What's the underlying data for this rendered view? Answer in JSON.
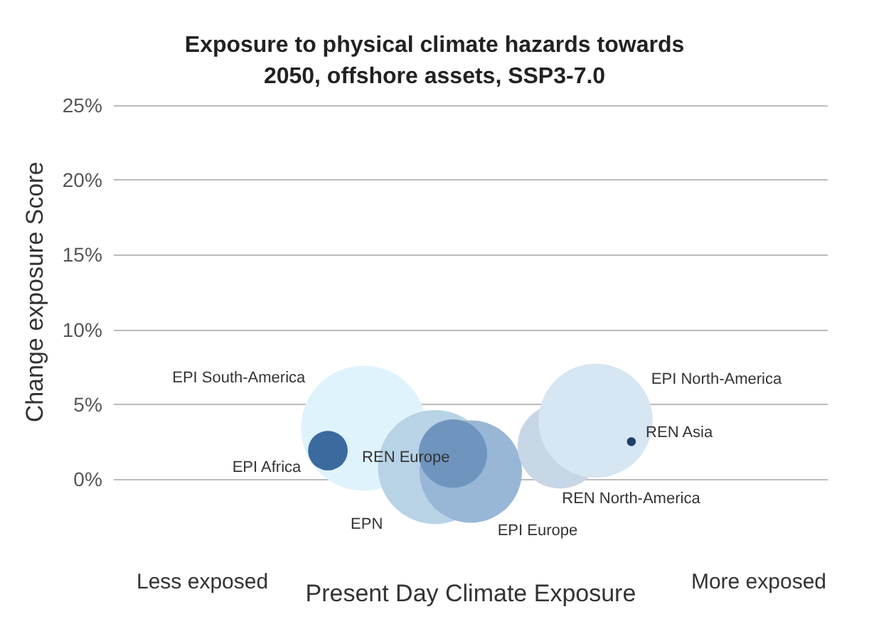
{
  "chart_data": {
    "type": "bubble",
    "title": "Exposure to physical climate hazards towards\n2050, offshore assets, SSP3-7.0",
    "xlabel": "Present Day Climate Exposure",
    "ylabel": "Change exposure Score",
    "annotations": [
      "Less exposed",
      "More exposed"
    ],
    "categories": [
      null,
      null,
      null,
      null,
      null,
      null,
      null,
      null,
      null,
      null,
      null,
      null,
      null,
      null,
      null,
      null,
      null,
      null,
      null,
      null,
      null,
      null,
      null,
      null,
      null,
      null,
      null,
      null,
      null,
      null,
      null,
      null,
      null,
      null,
      null,
      null,
      null,
      null,
      null,
      null,
      null
    ],
    "ylim": [
      0,
      25
    ],
    "yticks": [
      {
        "value": 0,
        "label": "0%"
      },
      {
        "value": 5,
        "label": "5%"
      },
      {
        "value": 10,
        "label": "10%"
      },
      {
        "value": 15,
        "label": "15%"
      },
      {
        "value": 20,
        "label": "20%"
      },
      {
        "value": 25,
        "label": "25%"
      }
    ],
    "tick_labels": "y",
    "grid": "y",
    "series": [
      {
        "name": "EPI South-America",
        "color": "#dff3fc",
        "values": [
          null,
          null,
          null,
          null,
          null,
          null,
          null,
          null,
          null,
          null,
          null,
          null,
          null,
          null,
          3.4,
          null,
          null,
          null,
          null,
          null,
          null,
          null,
          null,
          null,
          null,
          null,
          null,
          null,
          null,
          null,
          null,
          null,
          null,
          null,
          null,
          null,
          null,
          null,
          null,
          null,
          null
        ],
        "sizes": [
          null,
          null,
          null,
          null,
          null,
          null,
          null,
          null,
          null,
          null,
          null,
          null,
          null,
          null,
          1,
          null,
          null,
          null,
          null,
          null,
          null,
          null,
          null,
          null,
          null,
          null,
          null,
          null,
          null,
          null,
          null,
          null,
          null,
          null,
          null,
          null,
          null,
          null,
          null,
          null,
          null
        ]
      },
      {
        "name": "EPI Africa",
        "color": "#3b6a9e",
        "values": [
          null,
          null,
          null,
          null,
          null,
          null,
          null,
          null,
          null,
          null,
          null,
          null,
          1.9,
          null,
          null,
          null,
          null,
          null,
          null,
          null,
          null,
          null,
          null,
          null,
          null,
          null,
          null,
          null,
          null,
          null,
          null,
          null,
          null,
          null,
          null,
          null,
          null,
          null,
          null,
          null,
          null
        ],
        "sizes": [
          null,
          null,
          null,
          null,
          null,
          null,
          null,
          null,
          null,
          null,
          null,
          null,
          0.1,
          null,
          null,
          null,
          null,
          null,
          null,
          null,
          null,
          null,
          null,
          null,
          null,
          null,
          null,
          null,
          null,
          null,
          null,
          null,
          null,
          null,
          null,
          null,
          null,
          null,
          null,
          null,
          null
        ]
      },
      {
        "name": "EPN",
        "color": "#b8d3e6",
        "values": [
          null,
          null,
          null,
          null,
          null,
          null,
          null,
          null,
          null,
          null,
          null,
          null,
          null,
          null,
          null,
          null,
          null,
          null,
          0.8,
          null,
          null,
          null,
          null,
          null,
          null,
          null,
          null,
          null,
          null,
          null,
          null,
          null,
          null,
          null,
          null,
          null,
          null,
          null,
          null,
          null,
          null
        ],
        "sizes": [
          null,
          null,
          null,
          null,
          null,
          null,
          null,
          null,
          null,
          null,
          null,
          null,
          null,
          null,
          null,
          null,
          null,
          null,
          0.83,
          null,
          null,
          null,
          null,
          null,
          null,
          null,
          null,
          null,
          null,
          null,
          null,
          null,
          null,
          null,
          null,
          null,
          null,
          null,
          null,
          null,
          null
        ]
      },
      {
        "name": "EPI Europe",
        "color": "#98b6d6",
        "values": [
          null,
          null,
          null,
          null,
          null,
          null,
          null,
          null,
          null,
          null,
          null,
          null,
          null,
          null,
          null,
          null,
          null,
          null,
          null,
          null,
          0.5,
          null,
          null,
          null,
          null,
          null,
          null,
          null,
          null,
          null,
          null,
          null,
          null,
          null,
          null,
          null,
          null,
          null,
          null,
          null,
          null
        ],
        "sizes": [
          null,
          null,
          null,
          null,
          null,
          null,
          null,
          null,
          null,
          null,
          null,
          null,
          null,
          null,
          null,
          null,
          null,
          null,
          null,
          null,
          0.67,
          null,
          null,
          null,
          null,
          null,
          null,
          null,
          null,
          null,
          null,
          null,
          null,
          null,
          null,
          null,
          null,
          null,
          null,
          null,
          null
        ]
      },
      {
        "name": "REN Europe",
        "color": "#6f95bf",
        "values": [
          null,
          null,
          null,
          null,
          null,
          null,
          null,
          null,
          null,
          null,
          null,
          null,
          null,
          null,
          null,
          null,
          null,
          null,
          null,
          1.7,
          null,
          null,
          null,
          null,
          null,
          null,
          null,
          null,
          null,
          null,
          null,
          null,
          null,
          null,
          null,
          null,
          null,
          null,
          null,
          null,
          null
        ],
        "sizes": [
          null,
          null,
          null,
          null,
          null,
          null,
          null,
          null,
          null,
          null,
          null,
          null,
          null,
          null,
          null,
          null,
          null,
          null,
          null,
          0.3,
          null,
          null,
          null,
          null,
          null,
          null,
          null,
          null,
          null,
          null,
          null,
          null,
          null,
          null,
          null,
          null,
          null,
          null,
          null,
          null,
          null
        ]
      },
      {
        "name": "REN North-America",
        "color": "#c7d7e6",
        "values": [
          null,
          null,
          null,
          null,
          null,
          null,
          null,
          null,
          null,
          null,
          null,
          null,
          null,
          null,
          null,
          null,
          null,
          null,
          null,
          null,
          null,
          null,
          null,
          null,
          null,
          2.2,
          null,
          null,
          null,
          null,
          null,
          null,
          null,
          null,
          null,
          null,
          null,
          null,
          null,
          null,
          null
        ],
        "sizes": [
          null,
          null,
          null,
          null,
          null,
          null,
          null,
          null,
          null,
          null,
          null,
          null,
          null,
          null,
          null,
          null,
          null,
          null,
          null,
          null,
          null,
          null,
          null,
          null,
          null,
          0.46,
          null,
          null,
          null,
          null,
          null,
          null,
          null,
          null,
          null,
          null,
          null,
          null,
          null,
          null,
          null
        ]
      },
      {
        "name": "EPI North-America",
        "color": "#d6e6f2",
        "values": [
          null,
          null,
          null,
          null,
          null,
          null,
          null,
          null,
          null,
          null,
          null,
          null,
          null,
          null,
          null,
          null,
          null,
          null,
          null,
          null,
          null,
          null,
          null,
          null,
          null,
          null,
          null,
          3.9,
          null,
          null,
          null,
          null,
          null,
          null,
          null,
          null,
          null,
          null,
          null,
          null,
          null
        ],
        "sizes": [
          null,
          null,
          null,
          null,
          null,
          null,
          null,
          null,
          null,
          null,
          null,
          null,
          null,
          null,
          null,
          null,
          null,
          null,
          null,
          null,
          null,
          null,
          null,
          null,
          null,
          null,
          null,
          0.83,
          null,
          null,
          null,
          null,
          null,
          null,
          null,
          null,
          null,
          null,
          null,
          null,
          null
        ]
      },
      {
        "name": "REN Asia",
        "color": "#1e3f66",
        "values": [
          null,
          null,
          null,
          null,
          null,
          null,
          null,
          null,
          null,
          null,
          null,
          null,
          null,
          null,
          null,
          null,
          null,
          null,
          null,
          null,
          null,
          null,
          null,
          null,
          null,
          null,
          null,
          null,
          null,
          2.5,
          null,
          null,
          null,
          null,
          null,
          null,
          null,
          null,
          null,
          null,
          null
        ],
        "sizes": [
          null,
          null,
          null,
          null,
          null,
          null,
          null,
          null,
          null,
          null,
          null,
          null,
          null,
          null,
          null,
          null,
          null,
          null,
          null,
          null,
          null,
          null,
          null,
          null,
          null,
          null,
          null,
          null,
          null,
          0.005,
          null,
          null,
          null,
          null,
          null,
          null,
          null,
          null,
          null,
          null,
          null
        ]
      }
    ]
  }
}
